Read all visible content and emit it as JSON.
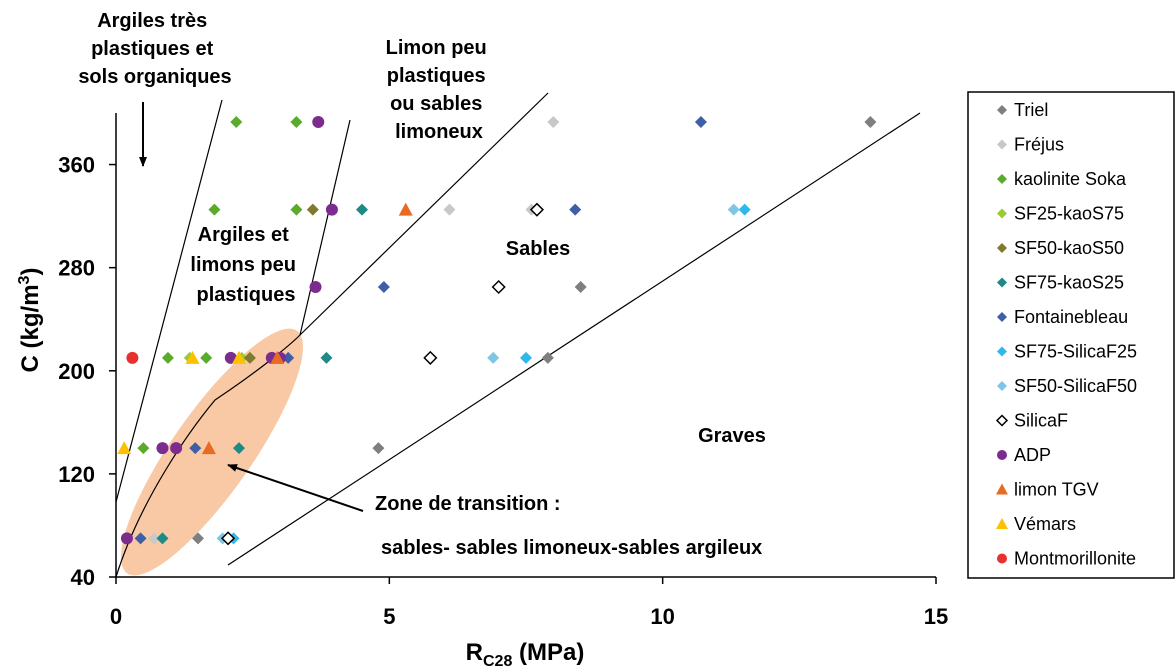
{
  "chart_data": {
    "type": "scatter",
    "title": "",
    "xlabel_main": "R",
    "xlabel_sub": "C28",
    "xlabel_unit": " (MPa)",
    "ylabel_main": "C (kg/m",
    "ylabel_sup": "3",
    "ylabel_end": ")",
    "xlim": [
      0,
      15
    ],
    "ylim": [
      40,
      400
    ],
    "xticks": [
      "0",
      "5",
      "10",
      "15"
    ],
    "yticks": [
      "40",
      "120",
      "200",
      "280",
      "360"
    ],
    "grid": false,
    "legend_position": "right",
    "series": [
      {
        "name": "Triel",
        "marker": "diamond",
        "color": "#7f7f7f",
        "points": [
          [
            13.8,
            393
          ],
          [
            4.8,
            140
          ],
          [
            8.5,
            265
          ],
          [
            7.9,
            210
          ],
          [
            1.5,
            70
          ]
        ]
      },
      {
        "name": "Fréjus",
        "marker": "diamond",
        "color": "#c8c8c8",
        "points": [
          [
            8.0,
            393
          ],
          [
            6.1,
            325
          ],
          [
            7.6,
            325
          ],
          [
            0.7,
            70
          ]
        ]
      },
      {
        "name": "kaolinite Soka",
        "marker": "diamond",
        "color": "#5aab2a",
        "points": [
          [
            2.2,
            393
          ],
          [
            3.3,
            393
          ],
          [
            1.8,
            325
          ],
          [
            3.3,
            325
          ],
          [
            0.5,
            140
          ],
          [
            0.95,
            210
          ],
          [
            1.65,
            210
          ]
        ]
      },
      {
        "name": "SF25-kaoS75",
        "marker": "diamond",
        "color": "#99cc33",
        "points": [
          [
            1.35,
            210
          ],
          [
            2.3,
            210
          ]
        ]
      },
      {
        "name": "SF50-kaoS50",
        "marker": "diamond",
        "color": "#7f7a2e",
        "points": [
          [
            3.6,
            325
          ],
          [
            2.45,
            210
          ]
        ]
      },
      {
        "name": "SF75-kaoS25",
        "marker": "diamond",
        "color": "#1d8a86",
        "points": [
          [
            4.5,
            325
          ],
          [
            3.85,
            210
          ],
          [
            2.25,
            140
          ],
          [
            0.85,
            70
          ]
        ]
      },
      {
        "name": "Fontainebleau",
        "marker": "diamond",
        "color": "#3f5ea8",
        "points": [
          [
            10.7,
            393
          ],
          [
            8.4,
            325
          ],
          [
            4.9,
            265
          ],
          [
            3.15,
            210
          ],
          [
            1.45,
            140
          ],
          [
            0.45,
            70
          ]
        ]
      },
      {
        "name": "SF75-SilicaF25",
        "marker": "diamond",
        "color": "#2fb8ec",
        "points": [
          [
            11.5,
            325
          ],
          [
            7.5,
            210
          ],
          [
            2.15,
            70
          ]
        ]
      },
      {
        "name": "SF50-SilicaF50",
        "marker": "diamond",
        "color": "#7ec6e3",
        "points": [
          [
            11.3,
            325
          ],
          [
            6.9,
            210
          ],
          [
            1.95,
            70
          ]
        ]
      },
      {
        "name": "SilicaF",
        "marker": "diamond-open",
        "color": "#000000",
        "points": [
          [
            7.7,
            325
          ],
          [
            7.0,
            265
          ],
          [
            5.75,
            210
          ],
          [
            2.05,
            70
          ]
        ]
      },
      {
        "name": "ADP",
        "marker": "circle",
        "color": "#7b2c8e",
        "points": [
          [
            3.7,
            393
          ],
          [
            3.95,
            325
          ],
          [
            3.65,
            265
          ],
          [
            2.1,
            210
          ],
          [
            2.85,
            210
          ],
          [
            3.0,
            210
          ],
          [
            0.85,
            140
          ],
          [
            1.1,
            140
          ],
          [
            0.2,
            70
          ]
        ]
      },
      {
        "name": "limon TGV",
        "marker": "triangle",
        "color": "#e86a23",
        "points": [
          [
            5.3,
            325
          ],
          [
            2.95,
            210
          ],
          [
            1.7,
            140
          ]
        ]
      },
      {
        "name": "Vémars",
        "marker": "triangle",
        "color": "#ffc000",
        "points": [
          [
            1.4,
            210
          ],
          [
            2.25,
            210
          ],
          [
            0.15,
            140
          ]
        ]
      },
      {
        "name": "Montmorillonite",
        "marker": "circle",
        "color": "#e8312e",
        "points": [
          [
            0.3,
            210
          ]
        ]
      }
    ],
    "annotations": {
      "argiles_tres": [
        "Argiles très",
        "plastiques et",
        "sols organiques"
      ],
      "limon_peu": [
        "Limon peu",
        "plastiques",
        "ou sables",
        "limoneux"
      ],
      "argiles_limons": [
        "Argiles et",
        "limons peu",
        "plastiques"
      ],
      "sables": "Sables",
      "graves": "Graves",
      "zone_transition": "Zone de transition :",
      "zone_detail": "sables- sables limoneux-sables argileux"
    },
    "colors": {
      "transition_zone": "#f8c9a4",
      "axis": "#000000"
    }
  }
}
